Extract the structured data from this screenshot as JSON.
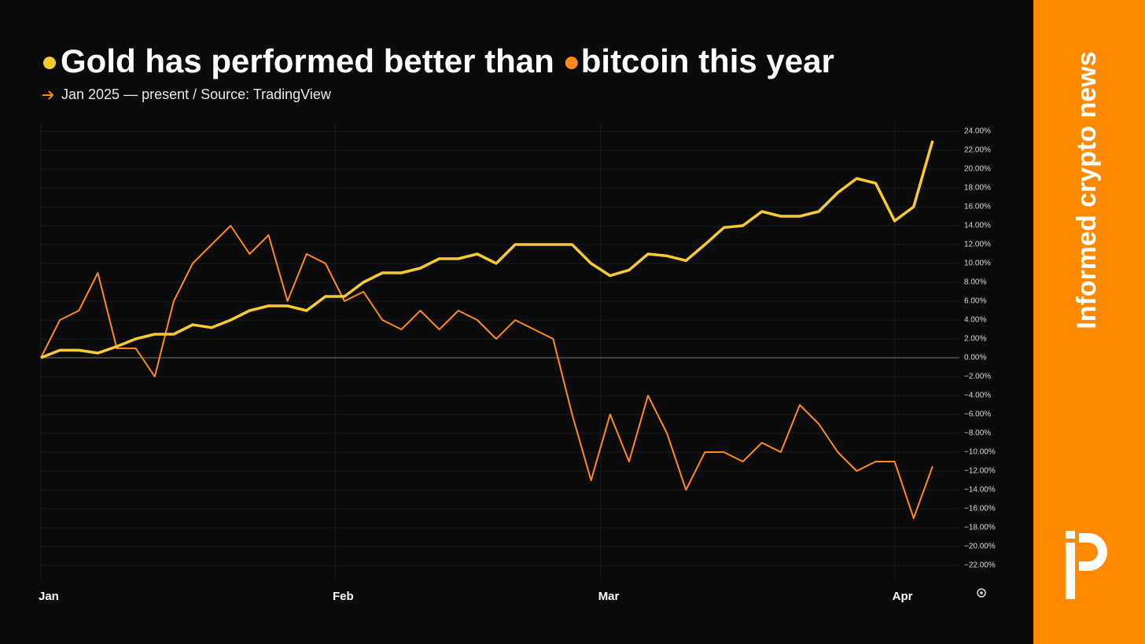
{
  "chart_data": {
    "type": "line",
    "title": [
      "Gold has performed better than",
      "bitcoin this year"
    ],
    "subtitle": "Jan 2025 — present / Source: TradingView",
    "brand": "Informed crypto news",
    "x": [
      0,
      2,
      4,
      6,
      8,
      10,
      12,
      14,
      16,
      18,
      20,
      22,
      24,
      26,
      28,
      30,
      32,
      34,
      36,
      38,
      40,
      42,
      44,
      46,
      48,
      50,
      52,
      54,
      56,
      58,
      60,
      62,
      64,
      66,
      68,
      70,
      72,
      74,
      76,
      78,
      80,
      82,
      84,
      86,
      88,
      90,
      92,
      94
    ],
    "series": [
      {
        "color": "#f7cb2f",
        "values": [
          0,
          0.8,
          0.8,
          0.5,
          1.2,
          2,
          2.5,
          2.5,
          3.5,
          3.2,
          4,
          5,
          5.5,
          5.5,
          5,
          6.5,
          6.5,
          8,
          9,
          9,
          9.5,
          10.5,
          10.5,
          11,
          10,
          12,
          12,
          12,
          12,
          10,
          8.7,
          9.3,
          11,
          10.8,
          10.3,
          12,
          13.8,
          14,
          15.5,
          15,
          15,
          15.5,
          17.5,
          19,
          18.5,
          14.5,
          16,
          23
        ]
      },
      {
        "color": "#ff8a1a",
        "values": [
          0,
          4,
          5,
          9,
          1,
          1,
          -2,
          6,
          10,
          12,
          14,
          11,
          13,
          6,
          11,
          10,
          6,
          7,
          4,
          3,
          5,
          3,
          5,
          4,
          2,
          4,
          3,
          2,
          -6,
          -13,
          -6,
          -11,
          -4,
          -8,
          -14,
          -10,
          -10,
          -11,
          -9,
          -10,
          -5,
          -7,
          -10,
          -12,
          -11,
          -11,
          -17,
          -11.5
        ]
      }
    ],
    "xlim": [
      0,
      96
    ],
    "xticks": [
      {
        "value": 0,
        "label": "Jan"
      },
      {
        "value": 31,
        "label": "Feb"
      },
      {
        "value": 59,
        "label": "Mar"
      },
      {
        "value": 90,
        "label": "Apr"
      }
    ],
    "ylim": [
      -23.5,
      24
    ],
    "yticks": [
      {
        "value": 24,
        "label": "24.00%"
      },
      {
        "value": 22,
        "label": "22.00%"
      },
      {
        "value": 20,
        "label": "20.00%"
      },
      {
        "value": 18,
        "label": "18.00%"
      },
      {
        "value": 16,
        "label": "16.00%"
      },
      {
        "value": 14,
        "label": "14.00%"
      },
      {
        "value": 12,
        "label": "12.00%"
      },
      {
        "value": 10,
        "label": "10.00%"
      },
      {
        "value": 8,
        "label": "8.00%"
      },
      {
        "value": 6,
        "label": "6.00%"
      },
      {
        "value": 4,
        "label": "4.00%"
      },
      {
        "value": 2,
        "label": "2.00%"
      },
      {
        "value": 0,
        "label": "0.00%"
      },
      {
        "value": -2,
        "label": "−2.00%"
      },
      {
        "value": -4,
        "label": "−4.00%"
      },
      {
        "value": -6,
        "label": "−6.00%"
      },
      {
        "value": -8,
        "label": "−8.00%"
      },
      {
        "value": -10,
        "label": "−10.00%"
      },
      {
        "value": -12,
        "label": "−12.00%"
      },
      {
        "value": -14,
        "label": "−14.00%"
      },
      {
        "value": -16,
        "label": "−16.00%"
      },
      {
        "value": -18,
        "label": "−18.00%"
      },
      {
        "value": -20,
        "label": "−20.00%"
      },
      {
        "value": -22,
        "label": "−22.00%"
      }
    ],
    "grid": true
  }
}
